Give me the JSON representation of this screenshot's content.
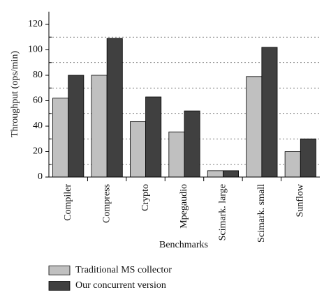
{
  "chart_data": {
    "type": "bar",
    "x_label": "Benchmarks",
    "y_label": "Throughput (ops/min)",
    "categories": [
      "Compiler",
      "Compress",
      "Crypto",
      "Mpegaudio",
      "Scimark. large",
      "Scimark. small",
      "Sunflow"
    ],
    "series": [
      {
        "name": "Traditional MS collector",
        "color": "#c0c0c0",
        "values": [
          62,
          80,
          43.5,
          35.5,
          5,
          79,
          20
        ]
      },
      {
        "name": "Our concurrent version",
        "color": "#404040",
        "values": [
          80,
          109,
          63,
          52,
          5,
          102,
          30
        ]
      }
    ],
    "ylim": [
      0,
      130
    ],
    "yticks": [
      0,
      20,
      40,
      60,
      80,
      100,
      120
    ],
    "grid_lines": [
      10,
      30,
      50,
      70,
      90,
      110
    ],
    "grid": true
  }
}
